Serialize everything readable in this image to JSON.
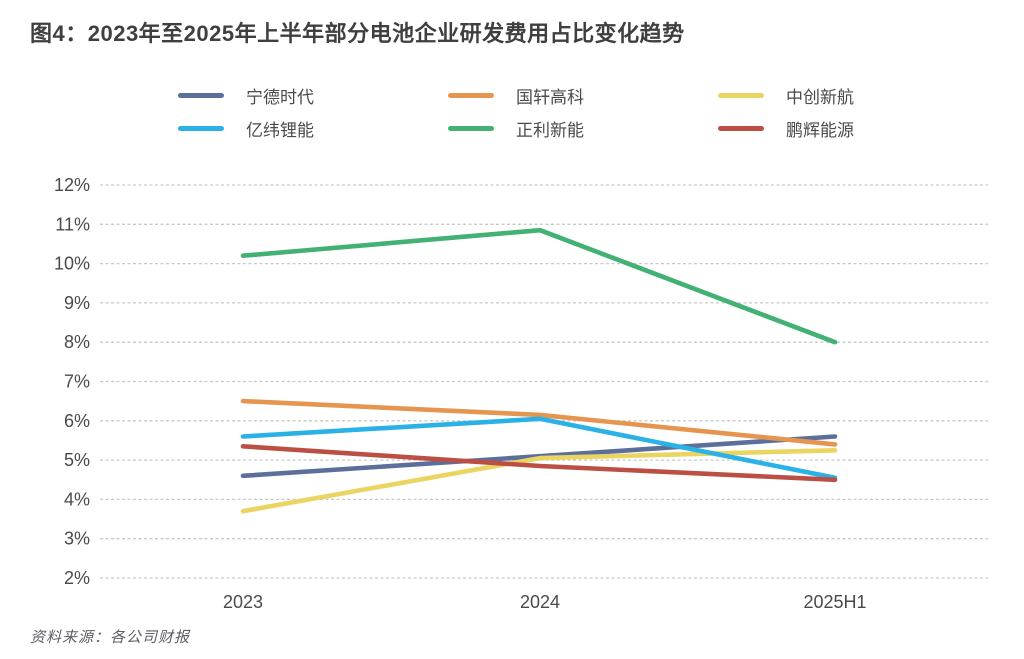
{
  "figure": {
    "title": "图4：2023年至2025年上半年部分电池企业研发费用占比变化趋势",
    "source": "资料来源：各公司财报"
  },
  "chart_data": {
    "type": "line",
    "title": "图4：2023年至2025年上半年部分电池企业研发费用占比变化趋势",
    "categories": [
      "2023",
      "2024",
      "2025H1"
    ],
    "series": [
      {
        "name": "宁德时代",
        "slug": "ningde-shidai",
        "color": "#5c6f9b",
        "values": [
          4.6,
          5.1,
          5.6
        ]
      },
      {
        "name": "国轩高科",
        "slug": "guoxuan-gaoke",
        "color": "#e5954f",
        "values": [
          6.5,
          6.15,
          5.4
        ]
      },
      {
        "name": "中创新航",
        "slug": "zhongchuang-xinhang",
        "color": "#ead563",
        "values": [
          3.7,
          5.05,
          5.25
        ]
      },
      {
        "name": "亿纬锂能",
        "slug": "yiwei-lineng",
        "color": "#2ab2e7",
        "values": [
          5.6,
          6.05,
          4.55
        ]
      },
      {
        "name": "正利新能",
        "slug": "zhengli-xinneng",
        "color": "#42b173",
        "values": [
          10.2,
          10.85,
          8.0
        ]
      },
      {
        "name": "鹏辉能源",
        "slug": "penghui-nengyuan",
        "color": "#bb4f43",
        "values": [
          5.35,
          4.85,
          4.5
        ]
      }
    ],
    "xlabel": "",
    "ylabel": "",
    "ylim": [
      2,
      12
    ],
    "ytick_step": 1,
    "ytick_suffix": "%",
    "ytick_labels": [
      "12%",
      "11%",
      "10%",
      "9%",
      "8%",
      "7%",
      "6%",
      "5%",
      "4%",
      "3%",
      "2%"
    ],
    "grid": "horizontal-dashed",
    "grid_color": "#c9c9c9",
    "tick_label_color": "#4a4a4a",
    "legend_position": "top",
    "legend_columns": 3
  }
}
